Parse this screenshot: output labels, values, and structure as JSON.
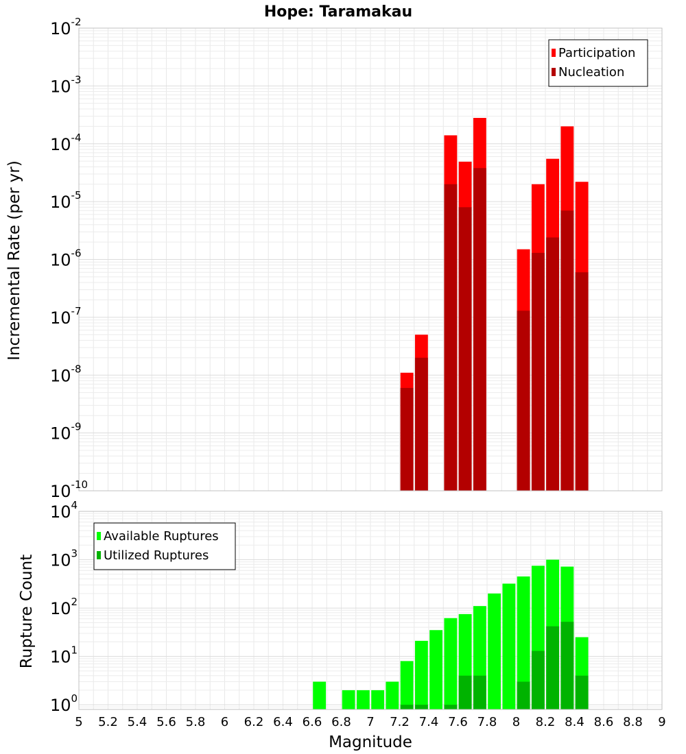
{
  "chart_data": [
    {
      "type": "bar",
      "title": "Hope: Taramakau",
      "xlabel": "",
      "ylabel": "Incremental Rate (per yr)",
      "yscale": "log",
      "xlim": [
        5,
        9
      ],
      "ylim": [
        1e-10,
        0.01
      ],
      "ytick_exponents": [
        "-10",
        "-9",
        "-8",
        "-7",
        "-6",
        "-5",
        "-4",
        "-3",
        "-2"
      ],
      "legend_position": "top-right",
      "bar_width": 0.1,
      "grid": true,
      "series": [
        {
          "name": "Participation",
          "color": "#ff0000",
          "points": [
            {
              "x": 7.25,
              "y": 1.1e-08
            },
            {
              "x": 7.35,
              "y": 5e-08
            },
            {
              "x": 7.55,
              "y": 0.00014
            },
            {
              "x": 7.65,
              "y": 4.9e-05
            },
            {
              "x": 7.75,
              "y": 0.00028
            },
            {
              "x": 8.05,
              "y": 1.5e-06
            },
            {
              "x": 8.15,
              "y": 2e-05
            },
            {
              "x": 8.25,
              "y": 5.5e-05
            },
            {
              "x": 8.35,
              "y": 0.0002
            },
            {
              "x": 8.45,
              "y": 2.2e-05
            }
          ]
        },
        {
          "name": "Nucleation",
          "color": "#b30000",
          "points": [
            {
              "x": 7.25,
              "y": 6e-09
            },
            {
              "x": 7.35,
              "y": 2e-08
            },
            {
              "x": 7.55,
              "y": 2e-05
            },
            {
              "x": 7.65,
              "y": 8e-06
            },
            {
              "x": 7.75,
              "y": 3.8e-05
            },
            {
              "x": 8.05,
              "y": 1.3e-07
            },
            {
              "x": 8.15,
              "y": 1.3e-06
            },
            {
              "x": 8.25,
              "y": 2.4e-06
            },
            {
              "x": 8.35,
              "y": 7e-06
            },
            {
              "x": 8.45,
              "y": 6e-07
            }
          ]
        }
      ]
    },
    {
      "type": "bar",
      "title": "",
      "xlabel": "Magnitude",
      "ylabel": "Rupture Count",
      "yscale": "log",
      "xlim": [
        5,
        9
      ],
      "ylim": [
        0.8,
        10000
      ],
      "ytick_exponents": [
        "0",
        "1",
        "2",
        "3",
        "4"
      ],
      "xticks": [
        "5",
        "5.2",
        "5.4",
        "5.6",
        "5.8",
        "6",
        "6.2",
        "6.4",
        "6.6",
        "6.8",
        "7",
        "7.2",
        "7.4",
        "7.6",
        "7.8",
        "8",
        "8.2",
        "8.4",
        "8.6",
        "8.8",
        "9"
      ],
      "legend_position": "top-left",
      "bar_width": 0.1,
      "grid": true,
      "series": [
        {
          "name": "Available Ruptures",
          "color": "#00ff00",
          "points": [
            {
              "x": 6.65,
              "y": 3
            },
            {
              "x": 6.85,
              "y": 2
            },
            {
              "x": 6.95,
              "y": 2
            },
            {
              "x": 7.05,
              "y": 2
            },
            {
              "x": 7.15,
              "y": 3
            },
            {
              "x": 7.25,
              "y": 8
            },
            {
              "x": 7.35,
              "y": 21
            },
            {
              "x": 7.45,
              "y": 35
            },
            {
              "x": 7.55,
              "y": 62
            },
            {
              "x": 7.65,
              "y": 75
            },
            {
              "x": 7.75,
              "y": 110
            },
            {
              "x": 7.85,
              "y": 200
            },
            {
              "x": 7.95,
              "y": 320
            },
            {
              "x": 8.05,
              "y": 450
            },
            {
              "x": 8.15,
              "y": 750
            },
            {
              "x": 8.25,
              "y": 1000
            },
            {
              "x": 8.35,
              "y": 720
            },
            {
              "x": 8.45,
              "y": 25
            }
          ]
        },
        {
          "name": "Utilized Ruptures",
          "color": "#00b300",
          "points": [
            {
              "x": 7.25,
              "y": 1
            },
            {
              "x": 7.35,
              "y": 1
            },
            {
              "x": 7.55,
              "y": 1
            },
            {
              "x": 7.65,
              "y": 4
            },
            {
              "x": 7.75,
              "y": 4
            },
            {
              "x": 8.05,
              "y": 3
            },
            {
              "x": 8.15,
              "y": 13
            },
            {
              "x": 8.25,
              "y": 42
            },
            {
              "x": 8.35,
              "y": 52
            },
            {
              "x": 8.45,
              "y": 4
            }
          ]
        }
      ]
    }
  ]
}
